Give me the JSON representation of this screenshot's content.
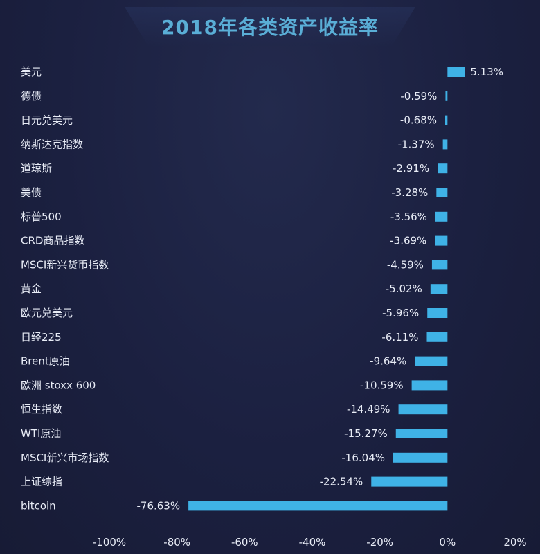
{
  "page": {
    "title": "2018年各类资产收益率"
  },
  "colors": {
    "background": "#1a1f3a",
    "bar": "#3fb2e6",
    "title": "#5aaed6",
    "text": "#e8ecf6"
  },
  "chart_data": {
    "type": "bar",
    "orientation": "horizontal",
    "title": "2018年各类资产收益率",
    "xlabel": "",
    "ylabel": "",
    "xlim": [
      -100,
      20
    ],
    "ticks": [
      -100,
      -80,
      -60,
      -40,
      -20,
      0,
      20
    ],
    "tick_labels": [
      "-100%",
      "-80%",
      "-60%",
      "-40%",
      "-20%",
      "0%",
      "20%"
    ],
    "grid": false,
    "legend": "none",
    "categories": [
      "美元",
      "德债",
      "日元兑美元",
      "纳斯达克指数",
      "道琼斯",
      "美债",
      "标普500",
      "CRD商品指数",
      "MSCI新兴货币指数",
      "黄金",
      "欧元兑美元",
      "日经225",
      "Brent原油",
      "欧洲 stoxx 600",
      "恒生指数",
      "WTI原油",
      "MSCI新兴市场指数",
      "上证综指",
      "bitcoin"
    ],
    "values": [
      5.13,
      -0.59,
      -0.68,
      -1.37,
      -2.91,
      -3.28,
      -3.56,
      -3.69,
      -4.59,
      -5.02,
      -5.96,
      -6.11,
      -9.64,
      -10.59,
      -14.49,
      -15.27,
      -16.04,
      -22.54,
      -76.63
    ],
    "value_labels": [
      "5.13%",
      "-0.59%",
      "-0.68%",
      "-1.37%",
      "-2.91%",
      "-3.28%",
      "-3.56%",
      "-3.69%",
      "-4.59%",
      "-5.02%",
      "-5.96%",
      "-6.11%",
      "-9.64%",
      "-10.59%",
      "-14.49%",
      "-15.27%",
      "-16.04%",
      "-22.54%",
      "-76.63%"
    ]
  }
}
